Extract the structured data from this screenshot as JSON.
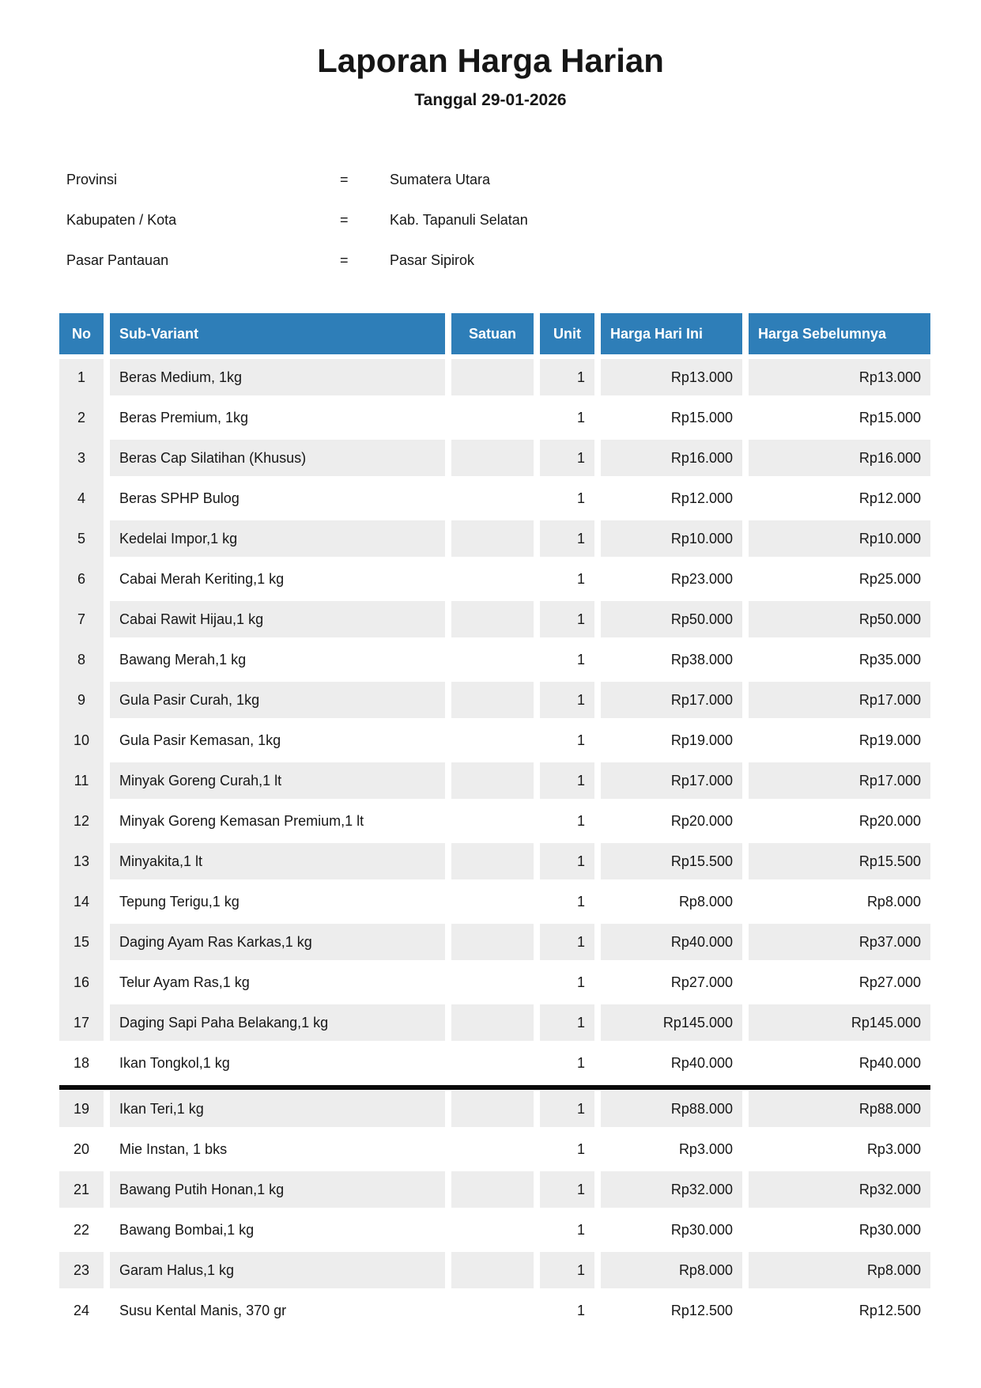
{
  "report": {
    "title": "Laporan Harga Harian",
    "date_line": "Tanggal 29-01-2026"
  },
  "meta": {
    "separator": "=",
    "rows": [
      {
        "label": "Provinsi",
        "value": "Sumatera Utara"
      },
      {
        "label": "Kabupaten / Kota",
        "value": "Kab. Tapanuli Selatan"
      },
      {
        "label": "Pasar Pantauan",
        "value": "Pasar Sipirok"
      }
    ]
  },
  "table": {
    "headers": [
      "No",
      "Sub-Variant",
      "Satuan",
      "Unit",
      "Harga Hari Ini",
      "Harga Sebelumnya"
    ],
    "page_break_after_no": 18,
    "rows": [
      {
        "no": "1",
        "sub_variant": "Beras Medium, 1kg",
        "satuan": "",
        "unit": "1",
        "harga_hari_ini": "Rp13.000",
        "harga_sebelumnya": "Rp13.000"
      },
      {
        "no": "2",
        "sub_variant": "Beras Premium, 1kg",
        "satuan": "",
        "unit": "1",
        "harga_hari_ini": "Rp15.000",
        "harga_sebelumnya": "Rp15.000"
      },
      {
        "no": "3",
        "sub_variant": "Beras Cap Silatihan (Khusus)",
        "satuan": "",
        "unit": "1",
        "harga_hari_ini": "Rp16.000",
        "harga_sebelumnya": "Rp16.000"
      },
      {
        "no": "4",
        "sub_variant": "Beras SPHP Bulog",
        "satuan": "",
        "unit": "1",
        "harga_hari_ini": "Rp12.000",
        "harga_sebelumnya": "Rp12.000"
      },
      {
        "no": "5",
        "sub_variant": "Kedelai Impor,1 kg",
        "satuan": "",
        "unit": "1",
        "harga_hari_ini": "Rp10.000",
        "harga_sebelumnya": "Rp10.000"
      },
      {
        "no": "6",
        "sub_variant": "Cabai Merah Keriting,1 kg",
        "satuan": "",
        "unit": "1",
        "harga_hari_ini": "Rp23.000",
        "harga_sebelumnya": "Rp25.000"
      },
      {
        "no": "7",
        "sub_variant": "Cabai Rawit Hijau,1 kg",
        "satuan": "",
        "unit": "1",
        "harga_hari_ini": "Rp50.000",
        "harga_sebelumnya": "Rp50.000"
      },
      {
        "no": "8",
        "sub_variant": "Bawang Merah,1 kg",
        "satuan": "",
        "unit": "1",
        "harga_hari_ini": "Rp38.000",
        "harga_sebelumnya": "Rp35.000"
      },
      {
        "no": "9",
        "sub_variant": "Gula Pasir Curah, 1kg",
        "satuan": "",
        "unit": "1",
        "harga_hari_ini": "Rp17.000",
        "harga_sebelumnya": "Rp17.000"
      },
      {
        "no": "10",
        "sub_variant": "Gula Pasir Kemasan, 1kg",
        "satuan": "",
        "unit": "1",
        "harga_hari_ini": "Rp19.000",
        "harga_sebelumnya": "Rp19.000"
      },
      {
        "no": "11",
        "sub_variant": "Minyak Goreng Curah,1 lt",
        "satuan": "",
        "unit": "1",
        "harga_hari_ini": "Rp17.000",
        "harga_sebelumnya": "Rp17.000"
      },
      {
        "no": "12",
        "sub_variant": "Minyak Goreng Kemasan Premium,1 lt",
        "satuan": "",
        "unit": "1",
        "harga_hari_ini": "Rp20.000",
        "harga_sebelumnya": "Rp20.000"
      },
      {
        "no": "13",
        "sub_variant": "Minyakita,1 lt",
        "satuan": "",
        "unit": "1",
        "harga_hari_ini": "Rp15.500",
        "harga_sebelumnya": "Rp15.500"
      },
      {
        "no": "14",
        "sub_variant": "Tepung Terigu,1 kg",
        "satuan": "",
        "unit": "1",
        "harga_hari_ini": "Rp8.000",
        "harga_sebelumnya": "Rp8.000"
      },
      {
        "no": "15",
        "sub_variant": "Daging Ayam Ras Karkas,1 kg",
        "satuan": "",
        "unit": "1",
        "harga_hari_ini": "Rp40.000",
        "harga_sebelumnya": "Rp37.000"
      },
      {
        "no": "16",
        "sub_variant": "Telur Ayam Ras,1 kg",
        "satuan": "",
        "unit": "1",
        "harga_hari_ini": "Rp27.000",
        "harga_sebelumnya": "Rp27.000"
      },
      {
        "no": "17",
        "sub_variant": "Daging Sapi Paha Belakang,1 kg",
        "satuan": "",
        "unit": "1",
        "harga_hari_ini": "Rp145.000",
        "harga_sebelumnya": "Rp145.000"
      },
      {
        "no": "18",
        "sub_variant": "Ikan Tongkol,1 kg",
        "satuan": "",
        "unit": "1",
        "harga_hari_ini": "Rp40.000",
        "harga_sebelumnya": "Rp40.000"
      },
      {
        "no": "19",
        "sub_variant": "Ikan Teri,1 kg",
        "satuan": "",
        "unit": "1",
        "harga_hari_ini": "Rp88.000",
        "harga_sebelumnya": "Rp88.000"
      },
      {
        "no": "20",
        "sub_variant": "Mie Instan, 1 bks",
        "satuan": "",
        "unit": "1",
        "harga_hari_ini": "Rp3.000",
        "harga_sebelumnya": "Rp3.000"
      },
      {
        "no": "21",
        "sub_variant": "Bawang Putih Honan,1 kg",
        "satuan": "",
        "unit": "1",
        "harga_hari_ini": "Rp32.000",
        "harga_sebelumnya": "Rp32.000"
      },
      {
        "no": "22",
        "sub_variant": "Bawang Bombai,1 kg",
        "satuan": "",
        "unit": "1",
        "harga_hari_ini": "Rp30.000",
        "harga_sebelumnya": "Rp30.000"
      },
      {
        "no": "23",
        "sub_variant": "Garam Halus,1 kg",
        "satuan": "",
        "unit": "1",
        "harga_hari_ini": "Rp8.000",
        "harga_sebelumnya": "Rp8.000"
      },
      {
        "no": "24",
        "sub_variant": "Susu Kental Manis, 370 gr",
        "satuan": "",
        "unit": "1",
        "harga_hari_ini": "Rp12.500",
        "harga_sebelumnya": "Rp12.500"
      }
    ]
  },
  "colors": {
    "header_bg": "#2e7eb8",
    "header_text": "#ffffff",
    "row_alt_bg": "#ededed",
    "page_break_bar": "#0a0a0a",
    "text": "#161616"
  }
}
